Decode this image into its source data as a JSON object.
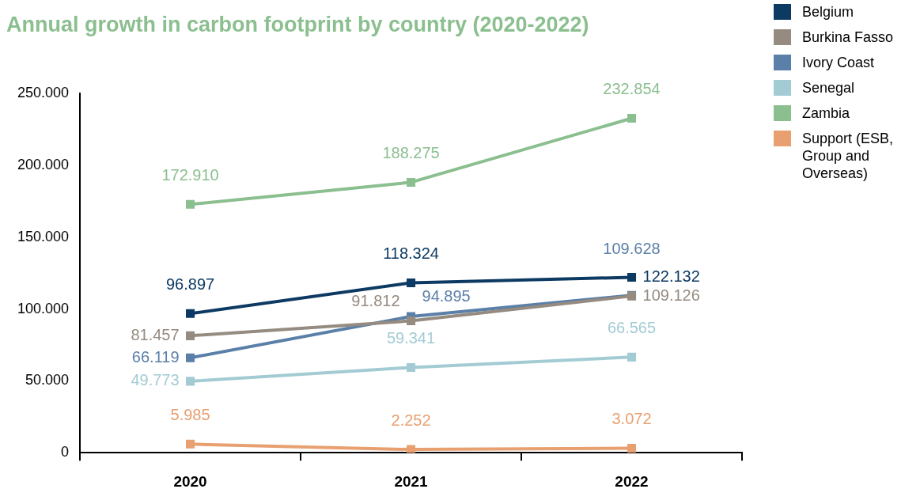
{
  "chart_data": {
    "type": "line",
    "title": "Annual growth in carbon footprint by country (2020-2022)",
    "categories": [
      "2020",
      "2021",
      "2022"
    ],
    "ylim": [
      0,
      250000
    ],
    "yticks": [
      {
        "value": 0,
        "label": "0"
      },
      {
        "value": 50000,
        "label": "50.000"
      },
      {
        "value": 100000,
        "label": "100.000"
      },
      {
        "value": 150000,
        "label": "150.000"
      },
      {
        "value": 200000,
        "label": "200.000"
      },
      {
        "value": 250000,
        "label": "250.000"
      }
    ],
    "grid": false,
    "legend": "right",
    "marker": "square",
    "line_style": "solid",
    "series": [
      {
        "name": "Belgium",
        "color": "#0d3a63",
        "values": [
          96897,
          118324,
          122132
        ],
        "value_labels": [
          "96.897",
          "118.324",
          "122.132"
        ]
      },
      {
        "name": "Burkina Fasso",
        "color": "#958b80",
        "values": [
          81457,
          91812,
          109126
        ],
        "value_labels": [
          "81.457",
          "91.812",
          "109.126"
        ]
      },
      {
        "name": "Ivory Coast",
        "color": "#5a7fa8",
        "values": [
          66119,
          94895,
          109628
        ],
        "value_labels": [
          "66.119",
          "94.895",
          "109.628"
        ]
      },
      {
        "name": "Senegal",
        "color": "#a3cbd4",
        "values": [
          49773,
          59341,
          66565
        ],
        "value_labels": [
          "49.773",
          "59.341",
          "66.565"
        ]
      },
      {
        "name": "Zambia",
        "color": "#8bbf8f",
        "values": [
          172910,
          188275,
          232854
        ],
        "value_labels": [
          "172.910",
          "188.275",
          "232.854"
        ]
      },
      {
        "name": "Support (ESB, Group and Overseas)",
        "color": "#e8a070",
        "values": [
          5985,
          2252,
          3072
        ],
        "value_labels": [
          "5.985",
          "2.252",
          "3.072"
        ]
      }
    ]
  }
}
